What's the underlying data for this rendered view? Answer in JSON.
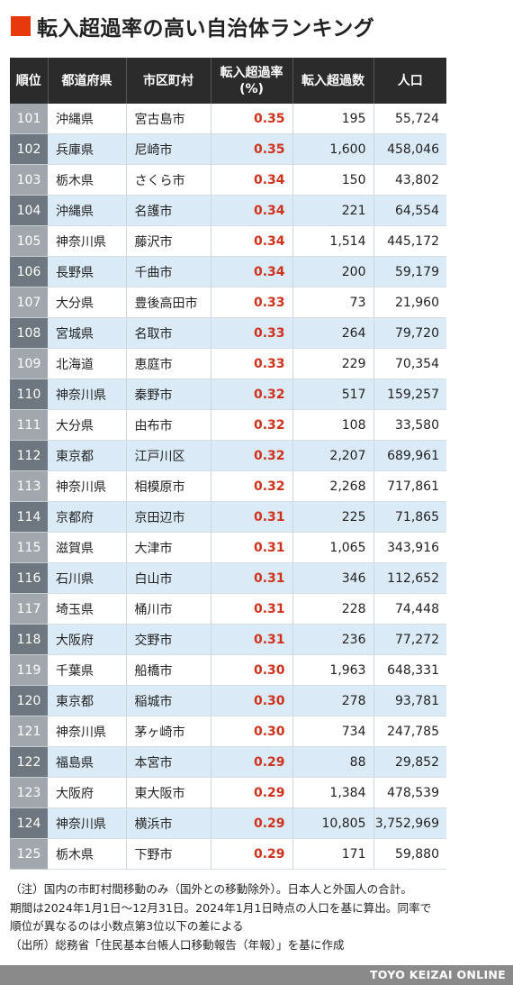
{
  "title": "転入超過率の高い自治体ランキング",
  "accent_color": "#e8380d",
  "table": {
    "headers": {
      "rank": "順位",
      "prefecture": "都道府県",
      "city": "市区町村",
      "rate_line1": "転入超過率",
      "rate_line2": "(%)",
      "net_inflow": "転入超過数",
      "population": "人口"
    },
    "rows": [
      {
        "rank": "101",
        "pref": "沖縄県",
        "city": "宮古島市",
        "rate": "0.35",
        "net": "195",
        "pop": "55,724"
      },
      {
        "rank": "102",
        "pref": "兵庫県",
        "city": "尼崎市",
        "rate": "0.35",
        "net": "1,600",
        "pop": "458,046"
      },
      {
        "rank": "103",
        "pref": "栃木県",
        "city": "さくら市",
        "rate": "0.34",
        "net": "150",
        "pop": "43,802"
      },
      {
        "rank": "104",
        "pref": "沖縄県",
        "city": "名護市",
        "rate": "0.34",
        "net": "221",
        "pop": "64,554"
      },
      {
        "rank": "105",
        "pref": "神奈川県",
        "city": "藤沢市",
        "rate": "0.34",
        "net": "1,514",
        "pop": "445,172"
      },
      {
        "rank": "106",
        "pref": "長野県",
        "city": "千曲市",
        "rate": "0.34",
        "net": "200",
        "pop": "59,179"
      },
      {
        "rank": "107",
        "pref": "大分県",
        "city": "豊後高田市",
        "rate": "0.33",
        "net": "73",
        "pop": "21,960"
      },
      {
        "rank": "108",
        "pref": "宮城県",
        "city": "名取市",
        "rate": "0.33",
        "net": "264",
        "pop": "79,720"
      },
      {
        "rank": "109",
        "pref": "北海道",
        "city": "恵庭市",
        "rate": "0.33",
        "net": "229",
        "pop": "70,354"
      },
      {
        "rank": "110",
        "pref": "神奈川県",
        "city": "秦野市",
        "rate": "0.32",
        "net": "517",
        "pop": "159,257"
      },
      {
        "rank": "111",
        "pref": "大分県",
        "city": "由布市",
        "rate": "0.32",
        "net": "108",
        "pop": "33,580"
      },
      {
        "rank": "112",
        "pref": "東京都",
        "city": "江戸川区",
        "rate": "0.32",
        "net": "2,207",
        "pop": "689,961"
      },
      {
        "rank": "113",
        "pref": "神奈川県",
        "city": "相模原市",
        "rate": "0.32",
        "net": "2,268",
        "pop": "717,861"
      },
      {
        "rank": "114",
        "pref": "京都府",
        "city": "京田辺市",
        "rate": "0.31",
        "net": "225",
        "pop": "71,865"
      },
      {
        "rank": "115",
        "pref": "滋賀県",
        "city": "大津市",
        "rate": "0.31",
        "net": "1,065",
        "pop": "343,916"
      },
      {
        "rank": "116",
        "pref": "石川県",
        "city": "白山市",
        "rate": "0.31",
        "net": "346",
        "pop": "112,652"
      },
      {
        "rank": "117",
        "pref": "埼玉県",
        "city": "桶川市",
        "rate": "0.31",
        "net": "228",
        "pop": "74,448"
      },
      {
        "rank": "118",
        "pref": "大阪府",
        "city": "交野市",
        "rate": "0.31",
        "net": "236",
        "pop": "77,272"
      },
      {
        "rank": "119",
        "pref": "千葉県",
        "city": "船橋市",
        "rate": "0.30",
        "net": "1,963",
        "pop": "648,331"
      },
      {
        "rank": "120",
        "pref": "東京都",
        "city": "稲城市",
        "rate": "0.30",
        "net": "278",
        "pop": "93,781"
      },
      {
        "rank": "121",
        "pref": "神奈川県",
        "city": "茅ヶ崎市",
        "rate": "0.30",
        "net": "734",
        "pop": "247,785"
      },
      {
        "rank": "122",
        "pref": "福島県",
        "city": "本宮市",
        "rate": "0.29",
        "net": "88",
        "pop": "29,852"
      },
      {
        "rank": "123",
        "pref": "大阪府",
        "city": "東大阪市",
        "rate": "0.29",
        "net": "1,384",
        "pop": "478,539"
      },
      {
        "rank": "124",
        "pref": "神奈川県",
        "city": "横浜市",
        "rate": "0.29",
        "net": "10,805",
        "pop": "3,752,969"
      },
      {
        "rank": "125",
        "pref": "栃木県",
        "city": "下野市",
        "rate": "0.29",
        "net": "171",
        "pop": "59,880"
      }
    ]
  },
  "notes": [
    "（注）国内の市町村間移動のみ（国外との移動除外）。日本人と外国人の合計。",
    "期間は2024年1月1日〜12月31日。2024年1月1日時点の人口を基に算出。同率で",
    "順位が異なるのは小数点第3位以下の差による",
    "（出所）総務省「住民基本台帳人口移動報告（年報）」を基に作成"
  ],
  "footer": "TOYO KEIZAI ONLINE"
}
